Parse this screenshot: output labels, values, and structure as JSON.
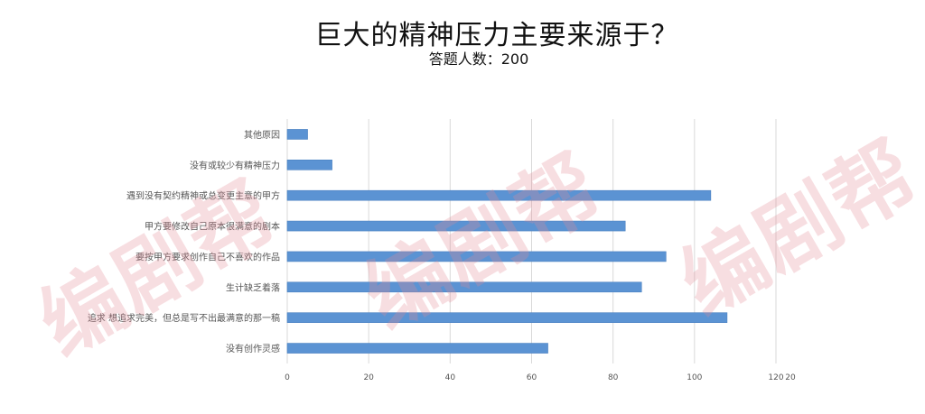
{
  "title": "巨大的精神压力主要来源于？",
  "subtitle": "答题人数：200",
  "watermark": "编剧帮",
  "colors": {
    "bar": "#5b93d3",
    "bar_edge": "#4a80c0",
    "grid": "#d9d9d9",
    "text": "#555555"
  },
  "chart_data": {
    "type": "bar",
    "orientation": "horizontal",
    "categories": [
      "其他原因",
      "没有或较少有精神压力",
      "遇到没有契约精神或总变更主意的甲方",
      "甲方要修改自己原本很满意的剧本",
      "要按甲方要求创作自己不喜欢的作品",
      "生计缺乏着落",
      "追求 想追求完美，但总是写不出最满意的那一稿",
      "没有创作灵感"
    ],
    "values": [
      5,
      11,
      104,
      83,
      93,
      87,
      108,
      64
    ],
    "xlim": [
      0,
      120
    ],
    "xticks": [
      0,
      20,
      40,
      60,
      80,
      100,
      120
    ],
    "grid": true,
    "stray_tick_text": "20"
  }
}
